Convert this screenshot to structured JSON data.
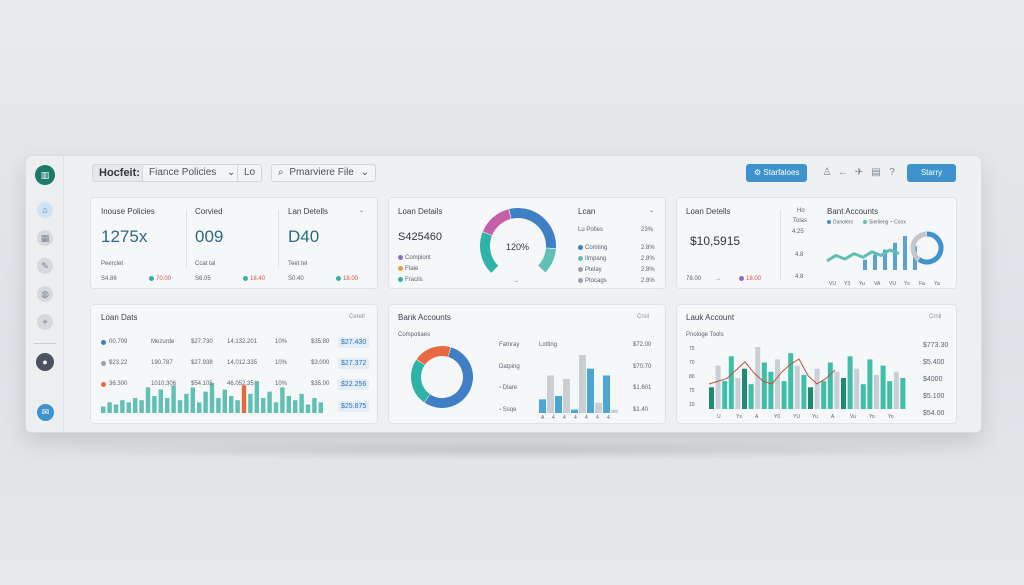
{
  "topbar": {
    "app_title": "Hocfeit:",
    "tabs": [
      {
        "label": "Fiance Policies",
        "icon": "chevron-down-icon"
      },
      {
        "label": "Lo"
      },
      {
        "label": "Pmarviere File",
        "icon": "search-icon"
      }
    ],
    "primary_button": "Starfaloes",
    "share_button": "Starry",
    "icons": [
      "user-icon",
      "back-icon",
      "bird-icon",
      "grid-icon",
      "help-icon"
    ]
  },
  "sidebar": {
    "icons": [
      "home-icon",
      "calendar-icon",
      "edit-icon",
      "globe-icon",
      "pin-icon"
    ],
    "avatar": "user-avatar",
    "bottom_icon": "chat-icon"
  },
  "card1": {
    "col1": {
      "label": "Inouse Policies",
      "value": "1275x",
      "sub": "Peerclet",
      "foot_left": "S4.86",
      "foot_right": "70.00"
    },
    "col2": {
      "label": "Corvied",
      "value": "009",
      "sub": "Ccat tal",
      "foot_left": "S6.05",
      "foot_right": "18.40"
    },
    "col3": {
      "label": "Lan Detells",
      "value": "D40",
      "sub": "Teet tel",
      "foot_left": "S0.40",
      "foot_right": "18.00"
    }
  },
  "card2": {
    "title": "Loan Details",
    "value": "S425460",
    "legend": [
      {
        "label": "Compiont",
        "color": "#8b6fc4"
      },
      {
        "label": "Ftaie",
        "color": "#e89a45"
      },
      {
        "label": "Fracils",
        "color": "#2fb3a8"
      }
    ],
    "gauge_label": "120%",
    "gauge_values": [
      25,
      20,
      40,
      15
    ],
    "right_title": "Lcan",
    "right_sub": "Lu Pofies",
    "right_pct": "23%",
    "rows": [
      {
        "label": "Comting",
        "value": "2.8%",
        "color": "#3f7fc6"
      },
      {
        "label": "Ilmpang",
        "value": "2.8%",
        "color": "#5fc0b3"
      },
      {
        "label": "Ptelay",
        "value": "2.8%",
        "color": "#9aa3ad"
      },
      {
        "label": "Ptocags",
        "value": "2.8%",
        "color": "#9aa3ad"
      }
    ]
  },
  "card3": {
    "title": "Loan Detells",
    "value": "$10,5915",
    "side_labels": [
      "Ho",
      "Tolas",
      "4.25",
      "4.8",
      "4.8"
    ],
    "foot_left": "78.00",
    "foot_right": "18.00",
    "right_title": "Bant Accounts",
    "legend": [
      "Dunolers",
      "Sierlieng ~ Coox"
    ],
    "x_labels": [
      "VU",
      "Y3",
      "Yu",
      "VA",
      "VU",
      "Ys",
      "Fa",
      "Ya"
    ],
    "bars": [
      6,
      9,
      12,
      16,
      20,
      14
    ],
    "line": [
      10,
      16,
      12,
      18,
      14,
      20,
      16,
      22,
      18
    ],
    "donut": [
      60,
      40
    ]
  },
  "card4": {
    "title": "Loan Dats",
    "filter": "Cerell",
    "rows": [
      {
        "c1": "00.709",
        "c2": "Mezurde",
        "c3": "$27.730",
        "c4": "14,132.201",
        "c5": "10%",
        "c6": "$35.80",
        "pill": "$27.430",
        "dot": "#3f7fc6"
      },
      {
        "c1": "$23.22",
        "c2": "190.787",
        "c3": "$27.938",
        "c4": "14,012.335",
        "c5": "10%",
        "c6": "$3,000",
        "pill": "$27.372",
        "dot": "#9aa3ad"
      },
      {
        "c1": "36.300",
        "c2": "1010.306",
        "c3": "$54.105",
        "c4": "46.052.35",
        "c5": "10%",
        "c6": "$35.00",
        "pill": "$22.256",
        "dot": "#e8693f"
      }
    ],
    "last_pill": "$25.875",
    "bars": [
      3,
      5,
      4,
      6,
      5,
      7,
      6,
      12,
      8,
      11,
      7,
      13,
      6,
      9,
      12,
      5,
      10,
      14,
      7,
      11,
      8,
      6,
      13,
      9,
      15,
      7,
      10,
      5,
      12,
      8,
      6,
      9,
      4,
      7,
      5
    ]
  },
  "card5": {
    "title": "Bank Accounts",
    "filter": "Crsil",
    "sub": "Compotiaes",
    "donut": [
      55,
      25,
      20
    ],
    "rows": [
      {
        "label": "Fatnray",
        "label2": "Lotting",
        "value": "$72.00"
      },
      {
        "label": "Datping",
        "value": "$70.70"
      },
      {
        "label": "Dlare",
        "value": "$1.601"
      },
      {
        "label": "Ssqe",
        "value": "$1.40"
      }
    ],
    "bars": [
      4,
      11,
      5,
      10,
      1,
      17,
      13,
      3,
      11,
      1
    ],
    "x_labels": [
      "A",
      "4",
      "4",
      "4",
      "4",
      "4",
      "4"
    ]
  },
  "card6": {
    "title": "Lauk Account",
    "filter": "Crnil",
    "sub": "Pnologe Tools",
    "y_labels": [
      "75",
      "70",
      "80",
      "75",
      "10"
    ],
    "values": [
      "$773.30",
      "$5.400",
      "$4000",
      "$5.100",
      "$54.00"
    ],
    "x_labels": [
      "U",
      "Ys",
      "A",
      "Y0",
      "YU",
      "Yu",
      "A",
      "Vu",
      "Yo",
      "Yo"
    ],
    "bars": [
      7,
      14,
      9,
      17,
      10,
      13,
      8,
      20,
      15,
      12,
      16,
      9,
      18,
      14,
      11,
      7,
      13,
      9,
      15,
      12,
      10,
      17,
      13,
      8,
      16,
      11,
      14,
      9,
      12,
      10
    ],
    "line": [
      9,
      10,
      11,
      14,
      17,
      13,
      10,
      9,
      13,
      16,
      18,
      12,
      9,
      11,
      14
    ]
  }
}
